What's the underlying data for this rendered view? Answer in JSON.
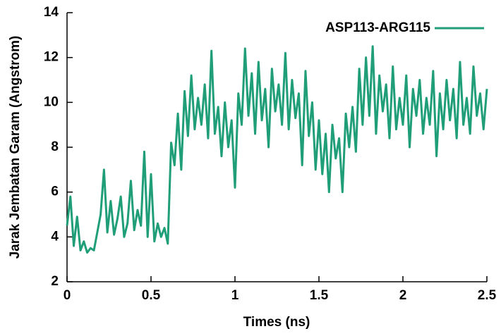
{
  "chart_data": {
    "type": "line",
    "xlabel": "Times (ns)",
    "ylabel": "Jarak Jembatan Garam (Angstrom)",
    "x": [
      0,
      0.02,
      0.04,
      0.06,
      0.08,
      0.1,
      0.12,
      0.14,
      0.16,
      0.18,
      0.2,
      0.22,
      0.24,
      0.26,
      0.28,
      0.3,
      0.32,
      0.34,
      0.36,
      0.38,
      0.4,
      0.42,
      0.44,
      0.46,
      0.48,
      0.5,
      0.52,
      0.54,
      0.56,
      0.58,
      0.6,
      0.62,
      0.64,
      0.66,
      0.68,
      0.7,
      0.72,
      0.74,
      0.76,
      0.78,
      0.8,
      0.82,
      0.84,
      0.86,
      0.88,
      0.9,
      0.92,
      0.94,
      0.96,
      0.98,
      1,
      1.02,
      1.04,
      1.06,
      1.08,
      1.1,
      1.12,
      1.14,
      1.16,
      1.18,
      1.2,
      1.22,
      1.24,
      1.26,
      1.28,
      1.3,
      1.32,
      1.34,
      1.36,
      1.38,
      1.4,
      1.42,
      1.44,
      1.46,
      1.48,
      1.5,
      1.52,
      1.54,
      1.56,
      1.58,
      1.6,
      1.62,
      1.64,
      1.66,
      1.68,
      1.7,
      1.72,
      1.74,
      1.76,
      1.78,
      1.8,
      1.82,
      1.84,
      1.86,
      1.88,
      1.9,
      1.92,
      1.94,
      1.96,
      1.98,
      2,
      2.02,
      2.04,
      2.06,
      2.08,
      2.1,
      2.12,
      2.14,
      2.16,
      2.18,
      2.2,
      2.22,
      2.24,
      2.26,
      2.28,
      2.3,
      2.32,
      2.34,
      2.36,
      2.38,
      2.4,
      2.42,
      2.44,
      2.46,
      2.48,
      2.5
    ],
    "series": [
      {
        "name": "ASP113-ARG115",
        "color": "#1f9e78",
        "values": [
          4.5,
          5.8,
          3.6,
          4.9,
          3.4,
          3.8,
          3.3,
          3.5,
          3.4,
          4.2,
          5.0,
          7.0,
          4.2,
          5.6,
          4.1,
          4.8,
          5.8,
          4.0,
          4.6,
          6.5,
          4.3,
          5.2,
          4.5,
          7.8,
          4.0,
          6.8,
          3.8,
          4.6,
          4.0,
          4.4,
          3.7,
          8.2,
          7.2,
          9.5,
          7.0,
          10.5,
          8.5,
          11.2,
          8.8,
          10.2,
          9.0,
          10.8,
          8.4,
          12.3,
          8.6,
          9.8,
          7.6,
          10.0,
          8.0,
          9.2,
          6.2,
          10.4,
          9.0,
          12.4,
          9.4,
          11.3,
          8.6,
          11.8,
          9.2,
          10.6,
          8.0,
          11.5,
          9.6,
          10.8,
          9.0,
          12.2,
          8.8,
          11.0,
          9.3,
          10.4,
          7.2,
          11.4,
          8.5,
          10.0,
          7.0,
          9.2,
          6.8,
          8.6,
          6.0,
          9.0,
          7.5,
          8.4,
          6.0,
          9.5,
          8.0,
          9.8,
          7.8,
          11.5,
          9.0,
          12.0,
          9.4,
          12.5,
          8.6,
          11.2,
          9.6,
          10.8,
          8.4,
          11.6,
          8.8,
          10.2,
          9.0,
          11.2,
          8.0,
          10.6,
          9.4,
          11.0,
          8.6,
          10.2,
          9.0,
          11.4,
          7.6,
          10.4,
          8.8,
          11.0,
          9.2,
          10.6,
          8.4,
          11.8,
          9.0,
          10.2,
          8.6,
          11.6,
          9.4,
          10.4,
          8.8,
          10.6
        ]
      }
    ],
    "xlim": [
      0,
      2.5
    ],
    "xticks": [
      0,
      0.5,
      1,
      1.5,
      2,
      2.5
    ],
    "ylim": [
      2,
      14
    ],
    "yticks": [
      2,
      4,
      6,
      8,
      10,
      12,
      14
    ],
    "legend": "top-right"
  }
}
